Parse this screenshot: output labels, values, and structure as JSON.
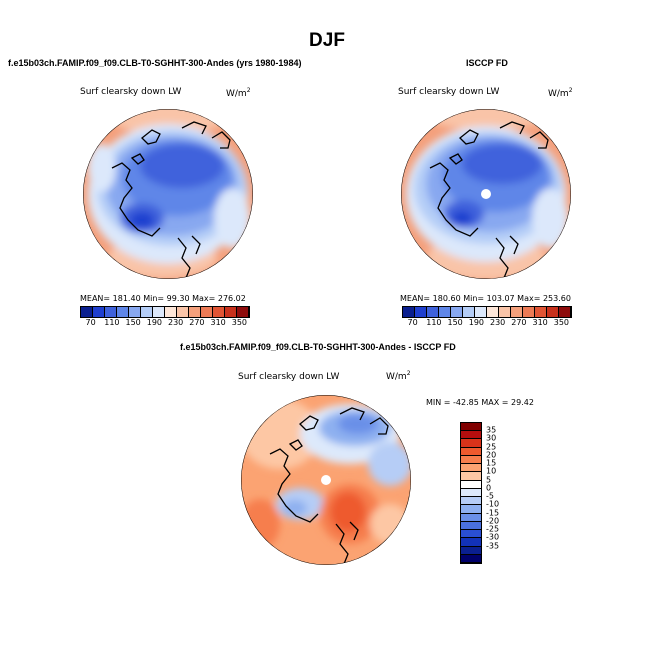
{
  "title": "DJF",
  "panel_left": {
    "case_title": "f.e15b03ch.FAMIP.f09_f09.CLB-T0-SGHHT-300-Andes (yrs 1980-1984)",
    "variable": "Surf clearsky down LW",
    "units_main": "W/m",
    "units_sup": "2",
    "stats": "MEAN= 181.40  Min= 99.30  Max= 276.02"
  },
  "panel_right": {
    "case_title": "ISCCP FD",
    "variable": "Surf clearsky down LW",
    "units_main": "W/m",
    "units_sup": "2",
    "stats": "MEAN= 180.60  Min= 103.07  Max= 253.60"
  },
  "panel_diff": {
    "case_title": "f.e15b03ch.FAMIP.f09_f09.CLB-T0-SGHHT-300-Andes - ISCCP FD",
    "variable": "Surf clearsky down LW",
    "units_main": "W/m",
    "units_sup": "2",
    "stats": "MIN = -42.85 MAX =  29.42"
  },
  "colorbar_abs": {
    "colors": [
      "#0a1f8f",
      "#1f3fcf",
      "#3f62dc",
      "#5f86e8",
      "#88a8f0",
      "#b4cdf7",
      "#dce8fb",
      "#fde6d8",
      "#f9c4a8",
      "#f4a07c",
      "#ec7a55",
      "#e05434",
      "#c8311c",
      "#8e0c0c"
    ],
    "labels": [
      "70",
      "110",
      "150",
      "190",
      "230",
      "270",
      "310",
      "350"
    ]
  },
  "colorbar_diff": {
    "colors": [
      "#800000",
      "#b50e0e",
      "#d9331a",
      "#ee5a2e",
      "#f67e4d",
      "#fba372",
      "#fdc7a4",
      "#ffffff",
      "#dde9fb",
      "#b6cdf6",
      "#8eb0f0",
      "#6a90e8",
      "#4a70de",
      "#2a4fd2",
      "#1232b8",
      "#0a1f8f",
      "#00006a"
    ],
    "labels": [
      "35",
      "30",
      "25",
      "20",
      "15",
      "10",
      "5",
      "0",
      "-5",
      "-10",
      "-15",
      "-20",
      "-25",
      "-30",
      "-35"
    ]
  }
}
